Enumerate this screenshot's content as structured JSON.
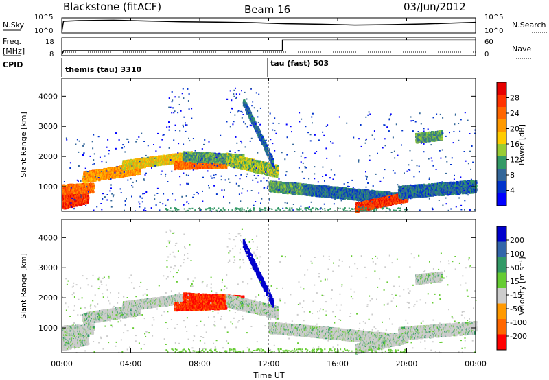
{
  "header": {
    "site": "Blackstone (fitACF)",
    "beam": "Beam 16",
    "date": "03/Jun/2012"
  },
  "chart_data": [
    {
      "type": "line",
      "panel": "noise",
      "left_label": "N.Sky",
      "right_label": "N.Search",
      "left_ticks": [
        "10^5",
        "10^0"
      ],
      "right_ticks": [
        "10^5",
        "10^0"
      ],
      "description_series": "sky noise trace, near constant high level",
      "x": [
        0.0,
        0.1,
        1,
        3,
        5,
        7,
        9,
        11,
        13,
        15,
        17,
        19,
        21,
        23,
        24
      ],
      "values": [
        0.0,
        0.8,
        0.85,
        0.88,
        0.82,
        0.76,
        0.74,
        0.7,
        0.62,
        0.58,
        0.52,
        0.55,
        0.6,
        0.68,
        0.72
      ]
    },
    {
      "type": "line",
      "panel": "frequency",
      "left_label": "Freq.",
      "left_unit": "[MHz]",
      "left_ticks": [
        "18",
        "8"
      ],
      "right_label": "Nave",
      "right_ticks": [
        "60",
        "0"
      ],
      "cpid_label": "CPID",
      "modes": [
        {
          "name": "themis (tau) 3310",
          "start": 0
        },
        {
          "name": "tau (fast) 503",
          "start": 12
        }
      ],
      "freq_x": [
        0,
        0.1,
        12.8,
        12.8,
        24
      ],
      "freq_y": [
        8,
        10.5,
        10.5,
        17,
        17
      ],
      "nave_y": 5
    },
    {
      "type": "heatmap",
      "panel": "power",
      "ylabel": "Slant Range [km]",
      "yticks": [
        1000,
        2000,
        3000,
        4000
      ],
      "ylim": [
        180,
        4600
      ],
      "colorbar_label": "Power [dB]",
      "colorbar_ticks": [
        "28",
        "24",
        "20",
        "16",
        "12",
        "8",
        "4"
      ],
      "colors": [
        "#e60000",
        "#ff3300",
        "#ff6600",
        "#ff9900",
        "#ffcc00",
        "#99cc33",
        "#339966",
        "#336699",
        "#0033cc",
        "#0000ff"
      ]
    },
    {
      "type": "heatmap",
      "panel": "velocity",
      "ylabel": "Slant Range [km]",
      "yticks": [
        1000,
        2000,
        3000,
        4000
      ],
      "ylim": [
        180,
        4600
      ],
      "colorbar_label": "Velocity [m s⁻¹]",
      "colorbar_ticks": [
        "200",
        "100",
        "50",
        "15",
        "-15",
        "-50",
        "-100",
        "-200"
      ],
      "colors": [
        "#0000cc",
        "#3366aa",
        "#339966",
        "#66cc33",
        "#cccccc",
        "#ff9900",
        "#ff6600",
        "#ff0000"
      ]
    }
  ],
  "xaxis": {
    "label": "Time UT",
    "ticks": [
      "00:00",
      "04:00",
      "08:00",
      "12:00",
      "16:00",
      "20:00",
      "00:00"
    ]
  }
}
